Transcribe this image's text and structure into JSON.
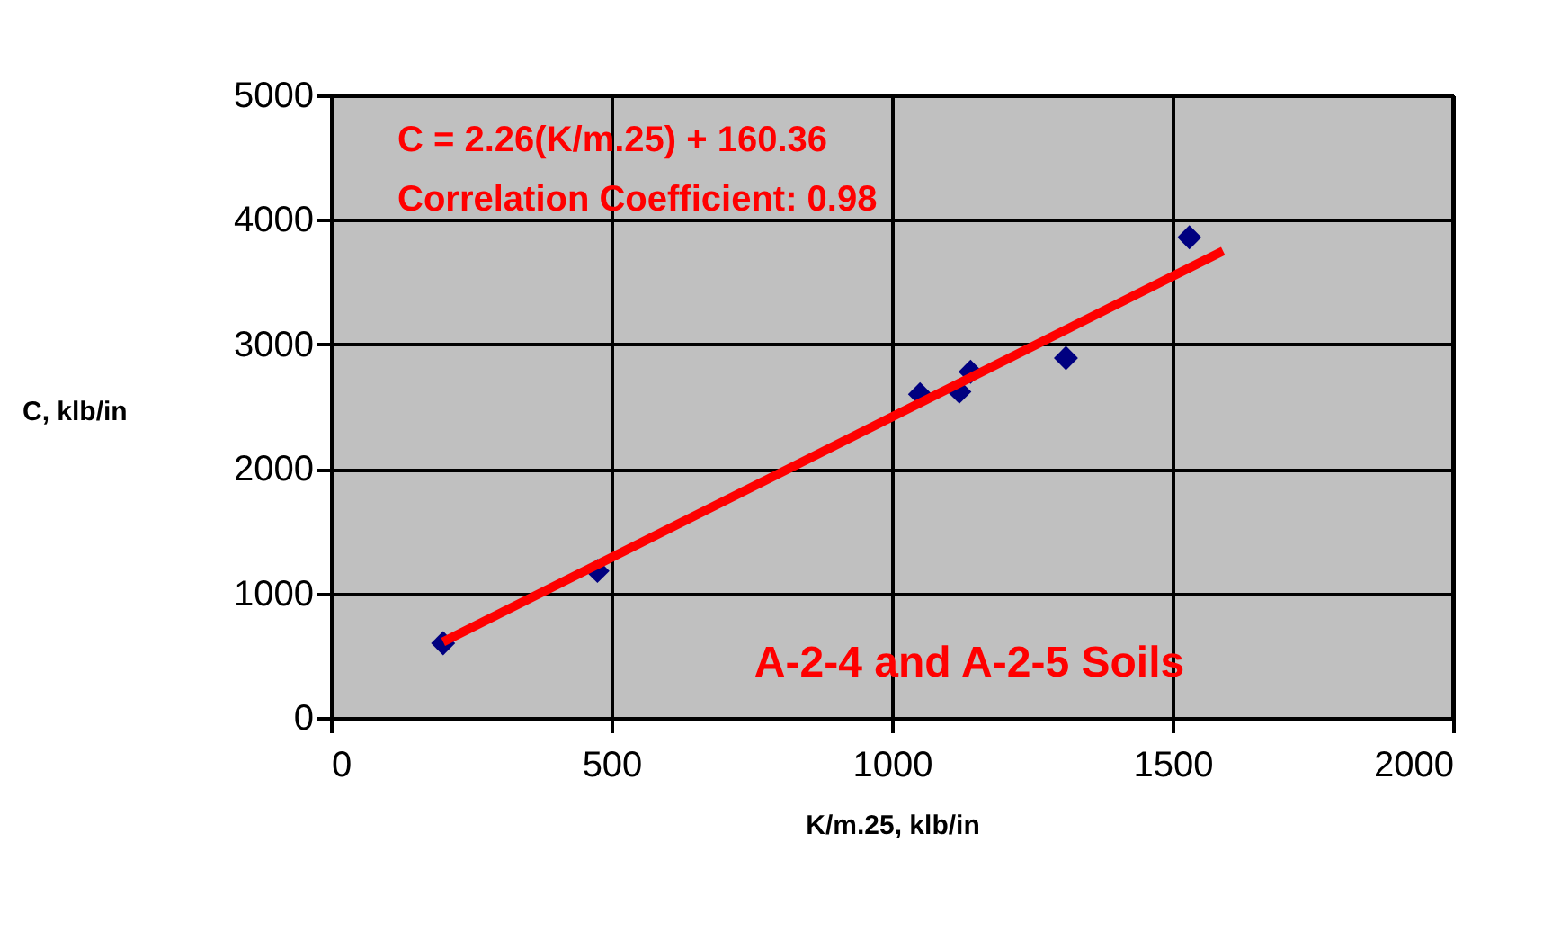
{
  "chart_data": {
    "type": "scatter",
    "xlabel": "K/m.25, klb/in",
    "ylabel": "C, klb/in",
    "xlim": [
      0,
      2000
    ],
    "xticks": [
      0,
      500,
      1000,
      1500,
      2000
    ],
    "ylim": [
      0,
      5000
    ],
    "yticks": [
      0,
      1000,
      2000,
      3000,
      4000,
      5000
    ],
    "grid": true,
    "marker": "diamond",
    "series": [
      {
        "color": "#000080",
        "x": [
          200,
          475,
          1050,
          1120,
          1140,
          1310,
          1530
        ],
        "values": [
          600,
          1180,
          2600,
          2620,
          2780,
          2890,
          3860
        ]
      },
      {
        "type": "line",
        "marker": "none",
        "line_style": "solid",
        "color": "#ff0000",
        "x": [
          200,
          1590
        ],
        "values": [
          610,
          3750
        ]
      }
    ],
    "annotations": [
      "C = 2.26(K/m.25) + 160.36",
      "Correlation Coefficient: 0.98",
      "A-2-4 and A-2-5 Soils"
    ]
  }
}
